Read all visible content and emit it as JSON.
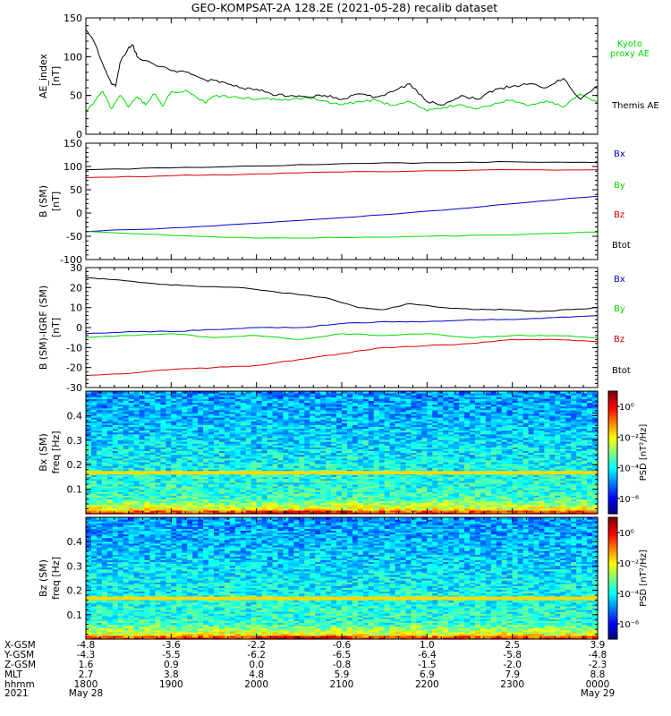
{
  "title": "GEO-KOMPSAT-2A 128.2E (2021-05-28) recalib dataset",
  "colors": {
    "black": "#000000",
    "green": "#00dd00",
    "red": "#dd0000",
    "blue": "#0000cc"
  },
  "chart_data": [
    {
      "type": "line",
      "ylabel": "AE_index",
      "yunit": "[nT]",
      "ylim": [
        0,
        150
      ],
      "yticks": [
        "0",
        "50",
        "100",
        "150"
      ],
      "yticks_values": [
        0,
        50,
        100,
        150
      ],
      "xlim": [
        0,
        6
      ],
      "legend": [
        "Kyoto",
        "proxy AE",
        "Themis AE"
      ],
      "series": [
        {
          "name": "Kyoto proxy AE",
          "color": "#00dd00",
          "x": [
            0,
            0.1,
            0.2,
            0.3,
            0.4,
            0.5,
            0.6,
            0.7,
            0.8,
            0.9,
            1.0,
            1.2,
            1.4,
            1.5,
            1.7,
            2.0,
            2.2,
            2.4,
            2.6,
            2.8,
            3.0,
            3.2,
            3.4,
            3.6,
            3.8,
            4.0,
            4.2,
            4.4,
            4.6,
            4.8,
            5.0,
            5.2,
            5.4,
            5.6,
            5.8,
            6.0
          ],
          "y": [
            28,
            42,
            55,
            33,
            50,
            35,
            48,
            38,
            52,
            36,
            55,
            55,
            40,
            49,
            48,
            45,
            46,
            44,
            47,
            43,
            38,
            42,
            44,
            37,
            42,
            30,
            35,
            38,
            33,
            40,
            44,
            37,
            43,
            35,
            52,
            40
          ]
        },
        {
          "name": "Themis AE",
          "color": "#000000",
          "x": [
            0,
            0.1,
            0.2,
            0.3,
            0.35,
            0.4,
            0.5,
            0.55,
            0.6,
            0.8,
            1.0,
            1.2,
            1.4,
            1.6,
            1.8,
            2.0,
            2.2,
            2.4,
            2.6,
            2.8,
            3.0,
            3.2,
            3.4,
            3.6,
            3.8,
            4.0,
            4.2,
            4.4,
            4.6,
            4.8,
            5.0,
            5.2,
            5.4,
            5.6,
            5.8,
            6.0
          ],
          "y": [
            135,
            118,
            90,
            65,
            62,
            92,
            112,
            115,
            100,
            90,
            82,
            80,
            70,
            68,
            60,
            58,
            50,
            50,
            48,
            50,
            45,
            52,
            48,
            55,
            65,
            42,
            38,
            50,
            45,
            58,
            62,
            65,
            60,
            72,
            45,
            62
          ]
        }
      ]
    },
    {
      "type": "line",
      "ylabel": "B (SM)",
      "yunit": "[nT]",
      "ylim": [
        -100,
        150
      ],
      "yticks": [
        "-100",
        "-50",
        "0",
        "50",
        "100",
        "150"
      ],
      "yticks_values": [
        -100,
        -50,
        0,
        50,
        100,
        150
      ],
      "xlim": [
        0,
        6
      ],
      "legend": [
        "Bx",
        "By",
        "Bz",
        "Btot"
      ],
      "series": [
        {
          "name": "Btot",
          "color": "#000000",
          "x": [
            0,
            1,
            2,
            3,
            4,
            5,
            6
          ],
          "y": [
            93,
            97,
            101,
            106,
            108,
            110,
            108
          ]
        },
        {
          "name": "Bz",
          "color": "#dd0000",
          "x": [
            0,
            1,
            2,
            3,
            4,
            5,
            6
          ],
          "y": [
            76,
            80,
            84,
            88,
            91,
            93,
            93
          ]
        },
        {
          "name": "Bx",
          "color": "#0000cc",
          "x": [
            0,
            1,
            2,
            3,
            4,
            5,
            6
          ],
          "y": [
            -40,
            -32,
            -22,
            -10,
            4,
            20,
            36
          ]
        },
        {
          "name": "By",
          "color": "#00dd00",
          "x": [
            0,
            1,
            2,
            3,
            4,
            5,
            6
          ],
          "y": [
            -40,
            -48,
            -54,
            -53,
            -50,
            -47,
            -41
          ]
        }
      ]
    },
    {
      "type": "line",
      "ylabel": "B (SM)-IGRF (SM)",
      "yunit": "[nT]",
      "ylim": [
        -30,
        30
      ],
      "yticks": [
        "-30",
        "-20",
        "-10",
        "0",
        "10",
        "20",
        "30"
      ],
      "yticks_values": [
        -30,
        -20,
        -10,
        0,
        10,
        20,
        30
      ],
      "xlim": [
        0,
        6
      ],
      "legend": [
        "Bx",
        "By",
        "Bz",
        "Btot"
      ],
      "series": [
        {
          "name": "Btot",
          "color": "#000000",
          "x": [
            0,
            0.3,
            0.8,
            1.2,
            1.8,
            2.2,
            2.8,
            3.2,
            3.5,
            3.8,
            4.2,
            4.6,
            4.9,
            5.3,
            5.7,
            6.0
          ],
          "y": [
            25,
            24,
            22,
            21,
            20,
            18,
            15,
            10,
            9,
            12,
            10,
            9,
            9,
            8,
            9,
            10
          ]
        },
        {
          "name": "Bx",
          "color": "#0000cc",
          "x": [
            0,
            0.5,
            1.0,
            1.5,
            2.0,
            2.5,
            3.0,
            3.5,
            4.0,
            4.5,
            5.0,
            5.5,
            6.0
          ],
          "y": [
            -3,
            -2,
            -2,
            -1,
            0,
            0,
            2,
            3,
            3,
            4,
            4,
            5,
            6
          ]
        },
        {
          "name": "By",
          "color": "#00dd00",
          "x": [
            0,
            0.5,
            1.0,
            1.5,
            2.0,
            2.5,
            3.0,
            3.5,
            4.0,
            4.5,
            5.0,
            5.5,
            6.0
          ],
          "y": [
            -5,
            -4,
            -3,
            -5,
            -4,
            -6,
            -3,
            -4,
            -3,
            -5,
            -4,
            -4,
            -5
          ]
        },
        {
          "name": "Bz",
          "color": "#dd0000",
          "x": [
            0,
            0.5,
            1.0,
            1.5,
            2.0,
            2.5,
            3.0,
            3.5,
            4.0,
            4.5,
            5.0,
            5.5,
            6.0
          ],
          "y": [
            -24,
            -23,
            -21,
            -20,
            -19,
            -16,
            -13,
            -10,
            -9,
            -8,
            -6,
            -6,
            -7
          ]
        }
      ]
    },
    {
      "type": "heatmap",
      "ylabel": "Bx (SM)",
      "yunit": "freq [Hz]",
      "ylim": [
        0,
        0.5
      ],
      "yticks": [
        "0.1",
        "0.2",
        "0.3",
        "0.4"
      ],
      "yticks_values": [
        0.1,
        0.2,
        0.3,
        0.4
      ],
      "colorbar_label": "PSD [nT²/Hz]",
      "colorbar_ticks": [
        "10⁰",
        "10⁻²",
        "10⁻⁴",
        "10⁻⁶"
      ],
      "colorbar_ticks_values": [
        0,
        -2,
        -4,
        -6
      ],
      "band_hz": 0.167
    },
    {
      "type": "heatmap",
      "ylabel": "Bz (SM)",
      "yunit": "freq [Hz]",
      "ylim": [
        0,
        0.5
      ],
      "yticks": [
        "0.1",
        "0.2",
        "0.3",
        "0.4"
      ],
      "yticks_values": [
        0.1,
        0.2,
        0.3,
        0.4
      ],
      "colorbar_label": "PSD [nT²/Hz]",
      "colorbar_ticks": [
        "10⁰",
        "10⁻²",
        "10⁻⁴",
        "10⁻⁶"
      ],
      "colorbar_ticks_values": [
        0,
        -2,
        -4,
        -6
      ],
      "band_hz": 0.167
    }
  ],
  "xaxis": {
    "row_labels": [
      "X-GSM",
      "Y-GSM",
      "Z-GSM",
      "MLT",
      "hhmm",
      "2021"
    ],
    "columns": [
      {
        "x": 0,
        "values": [
          "-4.8",
          "-4.3",
          "1.6",
          "2.7",
          "1800",
          "May 28"
        ]
      },
      {
        "x": 1,
        "values": [
          "-3.6",
          "-5.5",
          "0.9",
          "3.8",
          "1900",
          ""
        ]
      },
      {
        "x": 2,
        "values": [
          "-2.2",
          "-6.2",
          "0.0",
          "4.8",
          "2000",
          ""
        ]
      },
      {
        "x": 3,
        "values": [
          "-0.6",
          "-6.5",
          "-0.8",
          "5.9",
          "2100",
          ""
        ]
      },
      {
        "x": 4,
        "values": [
          "1.0",
          "-6.4",
          "-1.5",
          "6.9",
          "2200",
          ""
        ]
      },
      {
        "x": 5,
        "values": [
          "2.5",
          "-5.8",
          "-2.0",
          "7.9",
          "2300",
          ""
        ]
      },
      {
        "x": 6,
        "values": [
          "3.9",
          "-4.8",
          "-2.3",
          "8.8",
          "0000",
          "May 29"
        ]
      }
    ]
  }
}
